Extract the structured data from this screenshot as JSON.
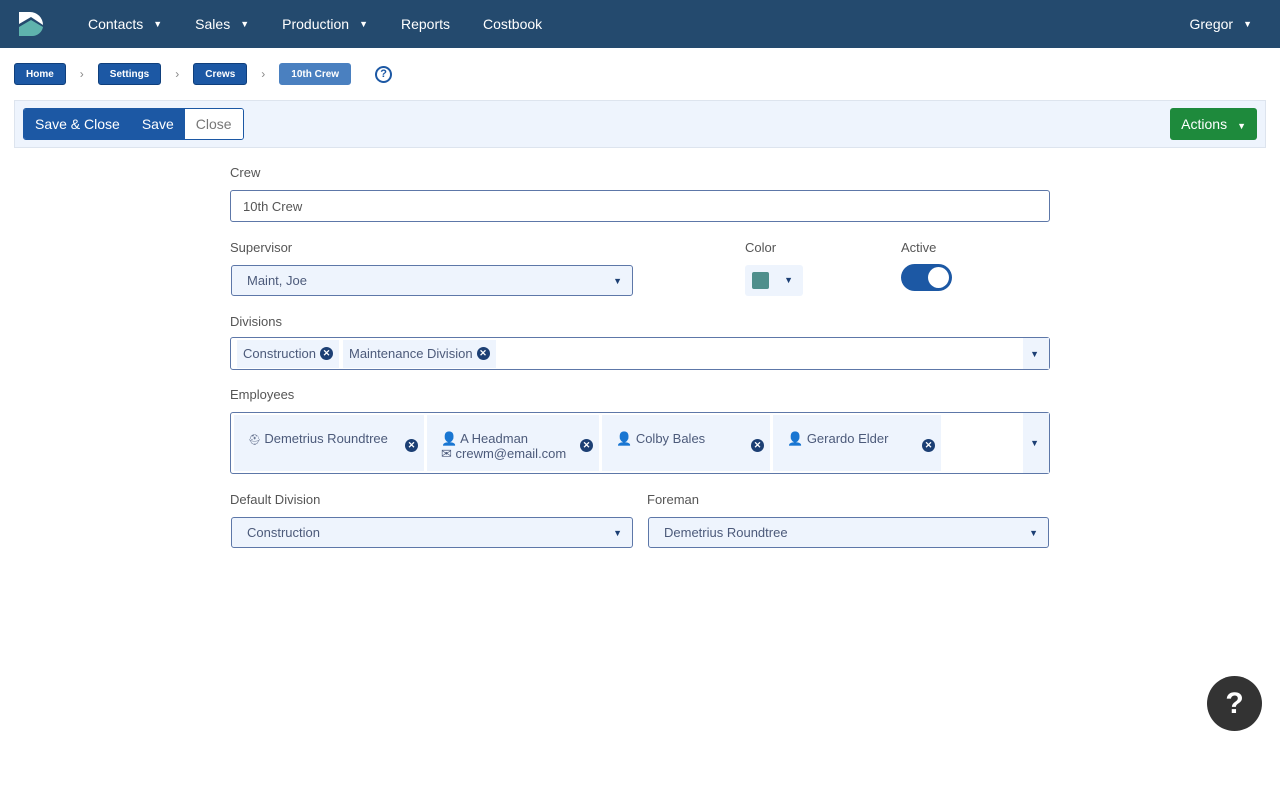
{
  "nav": {
    "items": [
      {
        "label": "Contacts",
        "dropdown": true
      },
      {
        "label": "Sales",
        "dropdown": true
      },
      {
        "label": "Production",
        "dropdown": true
      },
      {
        "label": "Reports",
        "dropdown": false
      },
      {
        "label": "Costbook",
        "dropdown": false
      }
    ],
    "user": "Gregor"
  },
  "breadcrumb": [
    "Home",
    "Settings",
    "Crews",
    "10th Crew"
  ],
  "toolbar": {
    "save_close": "Save & Close",
    "save": "Save",
    "close": "Close",
    "actions": "Actions"
  },
  "form": {
    "crew_label": "Crew",
    "crew_value": "10th Crew",
    "supervisor_label": "Supervisor",
    "supervisor_value": "Maint, Joe",
    "color_label": "Color",
    "color_value": "#4f8f8c",
    "active_label": "Active",
    "active": true,
    "divisions_label": "Divisions",
    "divisions": [
      "Construction",
      "Maintenance Division"
    ],
    "employees_label": "Employees",
    "employees": [
      {
        "name": "Demetrius Roundtree",
        "icon": "hard-hat-icon"
      },
      {
        "name": "A Headman",
        "email": "crewm@email.com",
        "icon": "user-icon"
      },
      {
        "name": "Colby Bales",
        "icon": "user-icon"
      },
      {
        "name": "Gerardo Elder",
        "icon": "user-icon"
      }
    ],
    "default_division_label": "Default Division",
    "default_division_value": "Construction",
    "foreman_label": "Foreman",
    "foreman_value": "Demetrius Roundtree"
  },
  "help_fab": "?"
}
